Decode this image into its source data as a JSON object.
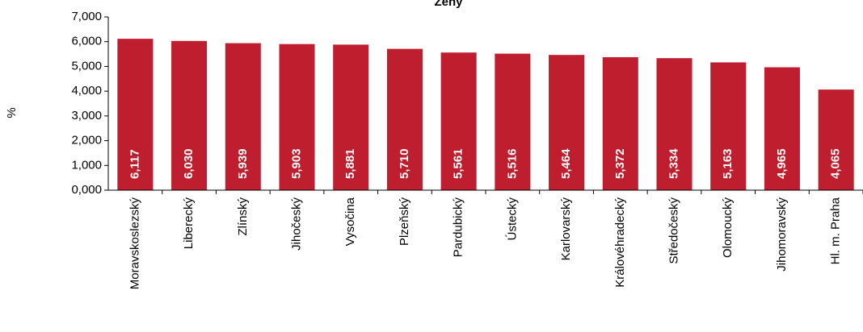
{
  "chart_data": {
    "type": "bar",
    "title": "Ženy",
    "y_label": "%",
    "categories": [
      "Moravskoslezský",
      "Liberecký",
      "Zlínský",
      "Jihočeský",
      "Vysočina",
      "Plzeňský",
      "Pardubický",
      "Ústecký",
      "Karlovarský",
      "Královéhradecký",
      "Středočeský",
      "Olomoucký",
      "Jihomoravský",
      "Hl. m. Praha"
    ],
    "values": [
      6.117,
      6.03,
      5.939,
      5.903,
      5.881,
      5.71,
      5.561,
      5.516,
      5.464,
      5.372,
      5.334,
      5.163,
      4.965,
      4.065
    ],
    "value_labels": [
      "6,117",
      "6,030",
      "5,939",
      "5,903",
      "5,881",
      "5,710",
      "5,561",
      "5,516",
      "5,464",
      "5,372",
      "5,334",
      "5,163",
      "4,965",
      "4,065"
    ],
    "color": "#be1e2d",
    "ylim": [
      0,
      7
    ],
    "yticks": [
      {
        "value": 0,
        "label": "0,000"
      },
      {
        "value": 1,
        "label": "1,000"
      },
      {
        "value": 2,
        "label": "2,000"
      },
      {
        "value": 3,
        "label": "3,000"
      },
      {
        "value": 4,
        "label": "4,000"
      },
      {
        "value": 5,
        "label": "5,000"
      },
      {
        "value": 6,
        "label": "6,000"
      },
      {
        "value": 7,
        "label": "7,000"
      }
    ],
    "grid": false
  }
}
